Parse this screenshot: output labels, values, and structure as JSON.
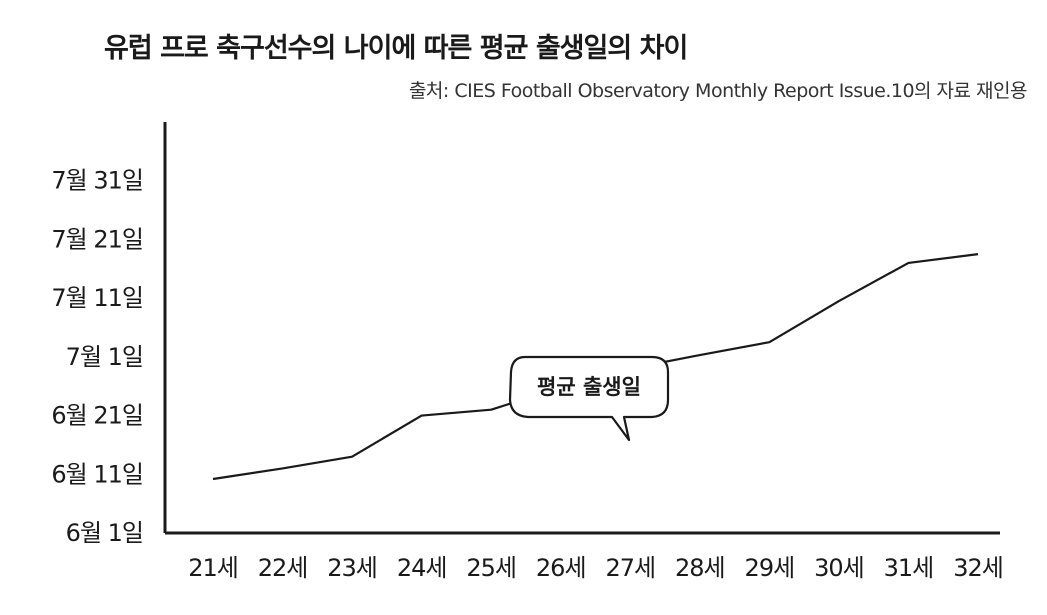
{
  "title": "유럽 프로 축구선수의 나이에 따른 평균 출생일의 차이",
  "source": "출처: CIES Football Observatory Monthly Report Issue.10의 자료 재인용",
  "chart_data": {
    "type": "line",
    "title": "유럽 프로 축구선수의 나이에 따른 평균 출생일의 차이",
    "categories": [
      "21세",
      "22세",
      "23세",
      "24세",
      "25세",
      "26세",
      "27세",
      "28세",
      "29세",
      "30세",
      "31세",
      "32세"
    ],
    "series": [
      {
        "name": "평균 출생일",
        "values": [
          9.2,
          11.0,
          13.0,
          20.0,
          21.0,
          24.8,
          28.0,
          30.3,
          32.5,
          39.5,
          46.0,
          47.5
        ]
      }
    ],
    "y_ticks": [
      {
        "value": 0,
        "label": "6월   1일"
      },
      {
        "value": 10,
        "label": "6월 11일"
      },
      {
        "value": 20,
        "label": "6월 21일"
      },
      {
        "value": 30,
        "label": "7월   1일"
      },
      {
        "value": 40,
        "label": "7월 11일"
      },
      {
        "value": 50,
        "label": "7월 21일"
      },
      {
        "value": 60,
        "label": "7월 31일"
      }
    ],
    "ylim": [
      0,
      70
    ],
    "grid": false,
    "annotation": "평균 출생일"
  }
}
